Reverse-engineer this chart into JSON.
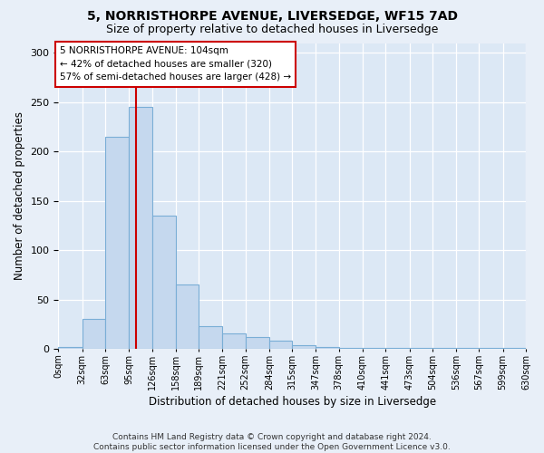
{
  "title": "5, NORRISTHORPE AVENUE, LIVERSEDGE, WF15 7AD",
  "subtitle": "Size of property relative to detached houses in Liversedge",
  "xlabel": "Distribution of detached houses by size in Liversedge",
  "ylabel": "Number of detached properties",
  "footer_line1": "Contains HM Land Registry data © Crown copyright and database right 2024.",
  "footer_line2": "Contains public sector information licensed under the Open Government Licence v3.0.",
  "bin_labels": [
    "0sqm",
    "32sqm",
    "63sqm",
    "95sqm",
    "126sqm",
    "158sqm",
    "189sqm",
    "221sqm",
    "252sqm",
    "284sqm",
    "315sqm",
    "347sqm",
    "378sqm",
    "410sqm",
    "441sqm",
    "473sqm",
    "504sqm",
    "536sqm",
    "567sqm",
    "599sqm",
    "630sqm"
  ],
  "bin_edges": [
    0,
    32,
    63,
    95,
    126,
    158,
    189,
    221,
    252,
    284,
    315,
    347,
    378,
    410,
    441,
    473,
    504,
    536,
    567,
    599,
    630
  ],
  "bar_heights": [
    2,
    30,
    215,
    245,
    135,
    65,
    23,
    16,
    12,
    8,
    4,
    2,
    1,
    1,
    1,
    1,
    1,
    1,
    1,
    1
  ],
  "property_size": 104,
  "bar_color": "#c5d8ee",
  "bar_edge_color": "#7aaed6",
  "vline_color": "#cc0000",
  "annotation_text": "5 NORRISTHORPE AVENUE: 104sqm\n← 42% of detached houses are smaller (320)\n57% of semi-detached houses are larger (428) →",
  "annotation_box_facecolor": "#ffffff",
  "annotation_box_edgecolor": "#cc0000",
  "ylim_max": 310,
  "yticks": [
    0,
    50,
    100,
    150,
    200,
    250,
    300
  ],
  "bg_color": "#dce8f5",
  "fig_bg_color": "#e8eff8",
  "grid_color": "#ffffff"
}
